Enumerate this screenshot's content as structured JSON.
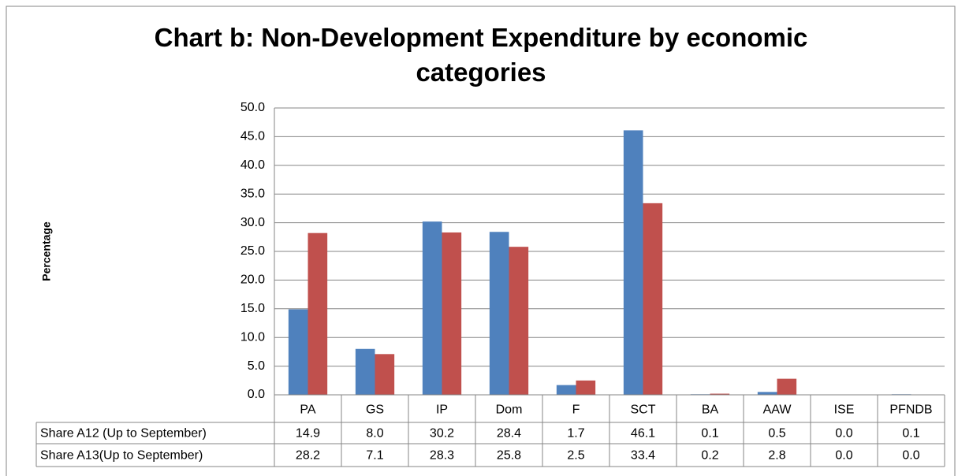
{
  "chart_data": {
    "type": "bar",
    "title": "Chart b: Non-Development  Expenditure by economic categories",
    "y_label": "Percentage",
    "categories": [
      "PA",
      "GS",
      "IP",
      "Dom",
      "F",
      "SCT",
      "BA",
      "AAW",
      "ISE",
      "PFNDB"
    ],
    "series": [
      {
        "name": "Share A12 (Up to September)",
        "color": "#4f81bd",
        "values": [
          14.9,
          8,
          30.2,
          28.4,
          1.7,
          46.1,
          0.1,
          0.5,
          0,
          0.1
        ],
        "value_labels": [
          "14.9",
          "8.0",
          "30.2",
          "28.4",
          "1.7",
          "46.1",
          "0.1",
          "0.5",
          "0.0",
          "0.1"
        ]
      },
      {
        "name": "Share A13(Up to September)",
        "color": "#c0504d",
        "values": [
          28.2,
          7.1,
          28.3,
          25.8,
          2.5,
          33.4,
          0.2,
          2.8,
          0,
          0
        ],
        "value_labels": [
          "28.2",
          "7.1",
          "28.3",
          "25.8",
          "2.5",
          "33.4",
          "0.2",
          "2.8",
          "0.0",
          "0.0"
        ]
      }
    ],
    "ylim": [
      0,
      50
    ],
    "yticks": [
      {
        "value": 0,
        "label": "0.0"
      },
      {
        "value": 5,
        "label": "5.0"
      },
      {
        "value": 10,
        "label": "10.0"
      },
      {
        "value": 15,
        "label": "15.0"
      },
      {
        "value": 20,
        "label": "20.0"
      },
      {
        "value": 25,
        "label": "25.0"
      },
      {
        "value": 30,
        "label": "30.0"
      },
      {
        "value": 35,
        "label": "35.0"
      },
      {
        "value": 40,
        "label": "40.0"
      },
      {
        "value": 45,
        "label": "45.0"
      },
      {
        "value": 50,
        "label": "50.0"
      }
    ],
    "grid": true
  }
}
